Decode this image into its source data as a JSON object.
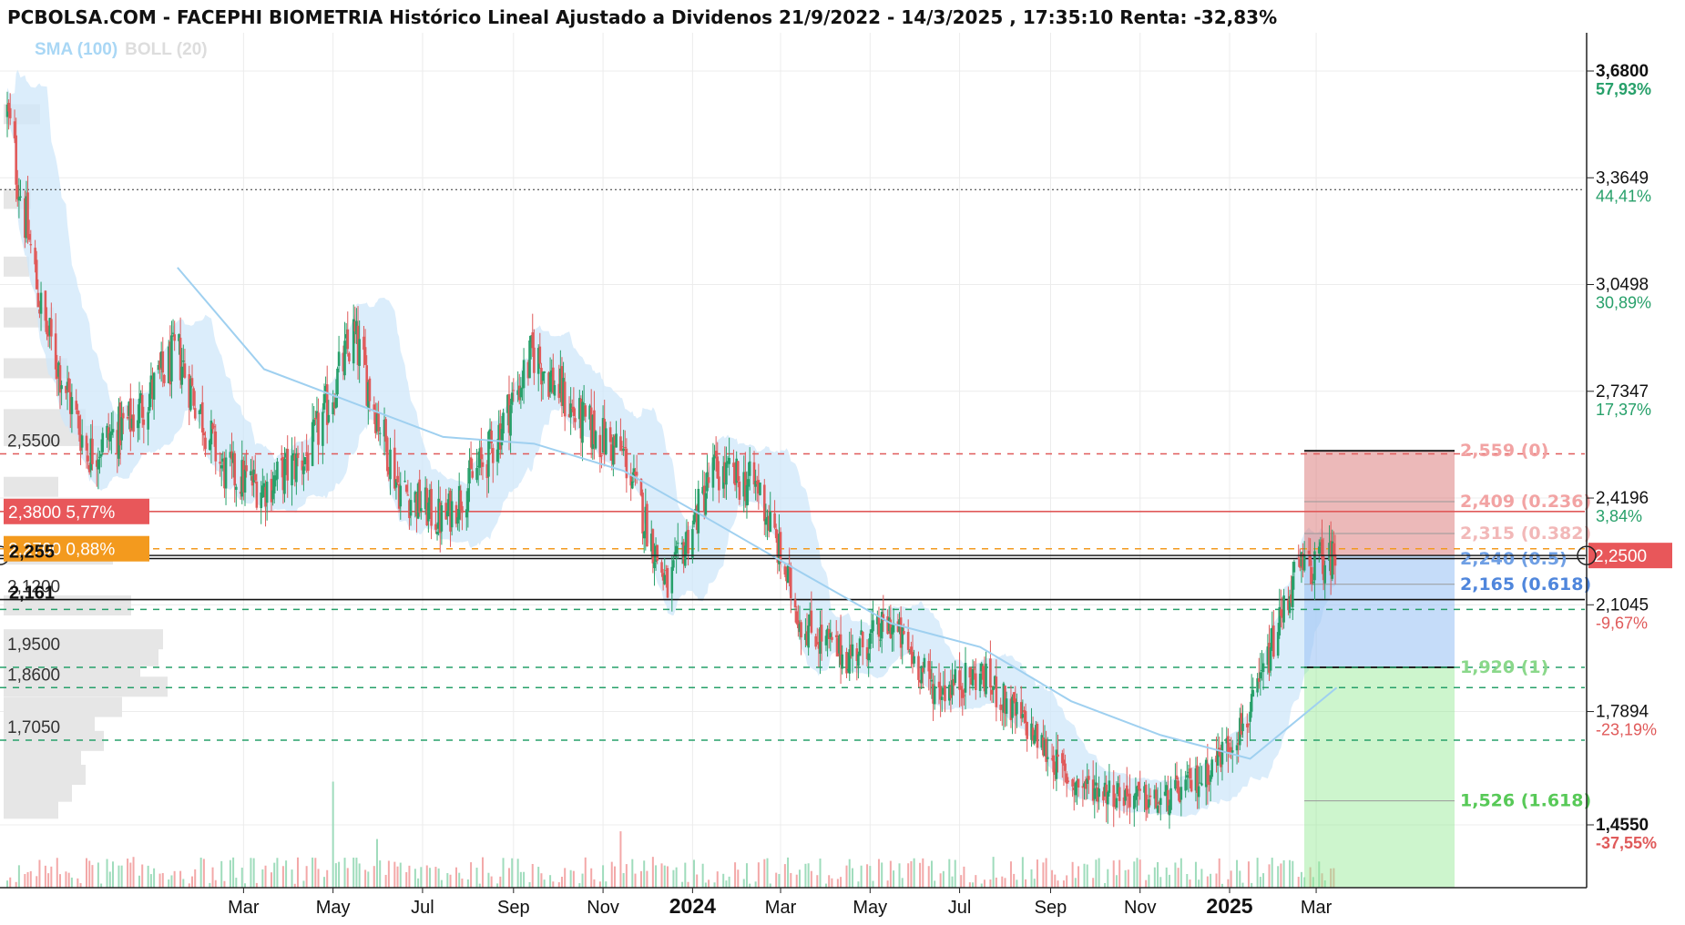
{
  "header": {
    "title": "PCBOLSA.COM - FACEPHI BIOMETRIA Histórico Lineal Ajustado a Dividenos 21/9/2022 - 14/3/2025 , 17:35:10 Renta: -32,83%",
    "indicators": [
      {
        "label": "SMA (100)",
        "color": "#a9d7f5"
      },
      {
        "label": "BOLL (20)",
        "color": "#dddddd"
      }
    ]
  },
  "colors": {
    "up": "#27a06a",
    "down": "#e05a5a",
    "sma": "#9fd0f0",
    "boll_fill": "#cfe7fa",
    "loss_zone": "#dc8080",
    "target_zone": "#90e890",
    "fill_zone": "#9ec5f5"
  },
  "chart_data": {
    "type": "line",
    "title": "PCBOLSA.COM - FACEPHI BIOMETRIA Histórico Lineal Ajustado a Dividenos 21/9/2022 - 14/3/2025 , 17:35:10 Renta: -32,83%",
    "ylim": [
      1.35,
      3.8
    ],
    "x_tick_labels": [
      "Mar",
      "May",
      "Jul",
      "Sep",
      "Nov",
      "2024",
      "Mar",
      "May",
      "Jul",
      "Sep",
      "Nov",
      "2025",
      "Mar"
    ],
    "y_axis_levels": [
      {
        "price": "3,6800",
        "pct": "57,93%",
        "value": 3.68,
        "bold": true
      },
      {
        "price": "3,3649",
        "pct": "44,41%",
        "value": 3.3649,
        "bold": false
      },
      {
        "price": "3,0498",
        "pct": "30,89%",
        "value": 3.0498,
        "bold": false
      },
      {
        "price": "2,7347",
        "pct": "17,37%",
        "value": 2.7347,
        "bold": false
      },
      {
        "price": "2,4196",
        "pct": "3,84%",
        "value": 2.4196,
        "bold": false
      },
      {
        "price": "2,1045",
        "pct": "-9,67%",
        "value": 2.1045,
        "bold": false
      },
      {
        "price": "1,7894",
        "pct": "-23,19%",
        "value": 1.7894,
        "bold": false
      },
      {
        "price": "1,4550",
        "pct": "-37,55%",
        "value": 1.455,
        "bold": true
      }
    ],
    "current_price": {
      "label": "2,2500",
      "value": 2.25
    },
    "left_levels": [
      {
        "label": "2,5500",
        "value": 2.55
      },
      {
        "label": "2,1200",
        "value": 2.12
      },
      {
        "label": "1,9500",
        "value": 1.95
      },
      {
        "label": "1,8600",
        "value": 1.86
      },
      {
        "label": "1,7050",
        "value": 1.705
      }
    ],
    "left_badges": [
      {
        "price": "2,3800",
        "pct": "5,77%",
        "value": 2.38,
        "color": "#e8575a"
      },
      {
        "price": "2,2700",
        "pct": "0,88%",
        "value": 2.27,
        "color": "#f39a1e"
      }
    ],
    "left_marks": [
      {
        "label": "2,255",
        "value": 2.255
      },
      {
        "label": "2,161",
        "value": 2.161
      }
    ],
    "fib_levels": [
      {
        "label": "2,559 (0)",
        "value": 2.559,
        "color": "#f2a3a3"
      },
      {
        "label": "2,409 (0.236)",
        "value": 2.409,
        "color": "#f2a3a3"
      },
      {
        "label": "2,315 (0.382)",
        "value": 2.315,
        "color": "#f2b8b8"
      },
      {
        "label": "2,240 (0.5)",
        "value": 2.24,
        "color": "#6f9fe4"
      },
      {
        "label": "2,165 (0.618)",
        "value": 2.165,
        "color": "#4f86dc"
      },
      {
        "label": "1,920 (1)",
        "value": 1.92,
        "color": "#8ad88a"
      },
      {
        "label": "1,526 (1.618)",
        "value": 1.526,
        "color": "#57c957"
      }
    ],
    "dashed_levels": [
      {
        "value": 2.55,
        "color": "#e05a5a"
      },
      {
        "value": 2.27,
        "color": "#f39a1e"
      },
      {
        "value": 2.091,
        "color": "#27a06a"
      },
      {
        "value": 1.92,
        "color": "#27a06a"
      },
      {
        "value": 1.86,
        "color": "#27a06a"
      },
      {
        "value": 1.705,
        "color": "#27a06a"
      },
      {
        "value": 3.33,
        "color": "#333333"
      }
    ],
    "solid_levels": [
      {
        "value": 2.38,
        "color": "#e05a5a"
      },
      {
        "value": 2.241,
        "color": "#111111"
      },
      {
        "value": 2.12,
        "color": "#111111"
      }
    ],
    "price_series": [
      {
        "date": "2022-09",
        "close": 3.55
      },
      {
        "date": "2022-10",
        "close": 2.95
      },
      {
        "date": "2022-11",
        "close": 2.55
      },
      {
        "date": "2022-12",
        "close": 2.65
      },
      {
        "date": "2023-01",
        "close": 2.85
      },
      {
        "date": "2023-02",
        "close": 2.5
      },
      {
        "date": "2023-03",
        "close": 2.45
      },
      {
        "date": "2023-04",
        "close": 2.55
      },
      {
        "date": "2023-05",
        "close": 2.9
      },
      {
        "date": "2023-06",
        "close": 2.45
      },
      {
        "date": "2023-07",
        "close": 2.35
      },
      {
        "date": "2023-08",
        "close": 2.55
      },
      {
        "date": "2023-09",
        "close": 2.85
      },
      {
        "date": "2023-10",
        "close": 2.65
      },
      {
        "date": "2023-11",
        "close": 2.55
      },
      {
        "date": "2023-12",
        "close": 2.15
      },
      {
        "date": "2024-01",
        "close": 2.5
      },
      {
        "date": "2024-02",
        "close": 2.45
      },
      {
        "date": "2024-03",
        "close": 2.05
      },
      {
        "date": "2024-04",
        "close": 1.95
      },
      {
        "date": "2024-05",
        "close": 2.05
      },
      {
        "date": "2024-06",
        "close": 1.85
      },
      {
        "date": "2024-07",
        "close": 1.9
      },
      {
        "date": "2024-08",
        "close": 1.75
      },
      {
        "date": "2024-09",
        "close": 1.58
      },
      {
        "date": "2024-10",
        "close": 1.55
      },
      {
        "date": "2024-11",
        "close": 1.52
      },
      {
        "date": "2024-12",
        "close": 1.6
      },
      {
        "date": "2025-01",
        "close": 1.78
      },
      {
        "date": "2025-02",
        "close": 2.2
      },
      {
        "date": "2025-03",
        "close": 2.25
      }
    ],
    "sma_series": [
      {
        "date": "2023-01",
        "value": 3.1
      },
      {
        "date": "2023-03",
        "value": 2.8
      },
      {
        "date": "2023-05",
        "value": 2.7
      },
      {
        "date": "2023-07",
        "value": 2.6
      },
      {
        "date": "2023-09",
        "value": 2.58
      },
      {
        "date": "2023-11",
        "value": 2.5
      },
      {
        "date": "2024-01",
        "value": 2.35
      },
      {
        "date": "2024-03",
        "value": 2.2
      },
      {
        "date": "2024-05",
        "value": 2.05
      },
      {
        "date": "2024-07",
        "value": 1.98
      },
      {
        "date": "2024-09",
        "value": 1.82
      },
      {
        "date": "2024-11",
        "value": 1.72
      },
      {
        "date": "2025-01",
        "value": 1.65
      },
      {
        "date": "2025-03",
        "value": 1.86
      }
    ],
    "zones": [
      {
        "name": "loss",
        "from": 2.559,
        "to": 2.25
      },
      {
        "name": "entry",
        "from": 2.25,
        "to": 1.92
      },
      {
        "name": "target",
        "from": 1.92,
        "to": 1.38
      }
    ]
  }
}
